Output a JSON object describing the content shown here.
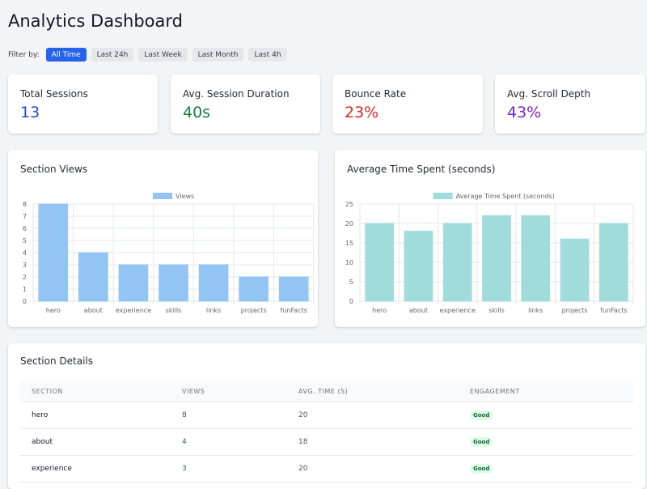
{
  "page": {
    "title": "Analytics Dashboard"
  },
  "filters": {
    "label": "Filter by:",
    "options": [
      "All Time",
      "Last 24h",
      "Last Week",
      "Last Month",
      "Last 4h"
    ],
    "active": "All Time",
    "active_color": "#2563eb"
  },
  "stats": [
    {
      "label": "Total Sessions",
      "value": "13",
      "color": "#1d4ed8"
    },
    {
      "label": "Avg. Session Duration",
      "value": "40s",
      "color": "#15803d"
    },
    {
      "label": "Bounce Rate",
      "value": "23%",
      "color": "#dc2626"
    },
    {
      "label": "Avg. Scroll Depth",
      "value": "43%",
      "color": "#7e22ce"
    }
  ],
  "chart_data": [
    {
      "type": "bar",
      "title": "Section Views",
      "categories": [
        "hero",
        "about",
        "experience",
        "skills",
        "links",
        "projects",
        "funFacts"
      ],
      "series": [
        {
          "name": "Views",
          "values": [
            8,
            4,
            3,
            3,
            3,
            2,
            2
          ],
          "color": "#93c5f4"
        }
      ],
      "yticks": [
        0,
        1,
        2,
        3,
        4,
        5,
        6,
        7,
        8
      ],
      "ylim": [
        0,
        8
      ],
      "legend": "top",
      "grid": true
    },
    {
      "type": "bar",
      "title": "Average Time Spent (seconds)",
      "categories": [
        "hero",
        "about",
        "experience",
        "skills",
        "links",
        "projects",
        "funFacts"
      ],
      "series": [
        {
          "name": "Average Time Spent (seconds)",
          "values": [
            20,
            18,
            20,
            22,
            22,
            16,
            20
          ],
          "color": "#a0dcdc"
        }
      ],
      "yticks": [
        0,
        5,
        10,
        15,
        20,
        25
      ],
      "ylim": [
        0,
        25
      ],
      "legend": "top",
      "grid": true
    }
  ],
  "details": {
    "title": "Section Details",
    "columns": [
      "SECTION",
      "VIEWS",
      "AVG. TIME (S)",
      "ENGAGEMENT"
    ],
    "rows": [
      {
        "section": "hero",
        "views": "8",
        "avg_time": "20",
        "engagement": "Good"
      },
      {
        "section": "about",
        "views": "4",
        "avg_time": "18",
        "engagement": "Good"
      },
      {
        "section": "experience",
        "views": "3",
        "avg_time": "20",
        "engagement": "Good"
      }
    ]
  }
}
